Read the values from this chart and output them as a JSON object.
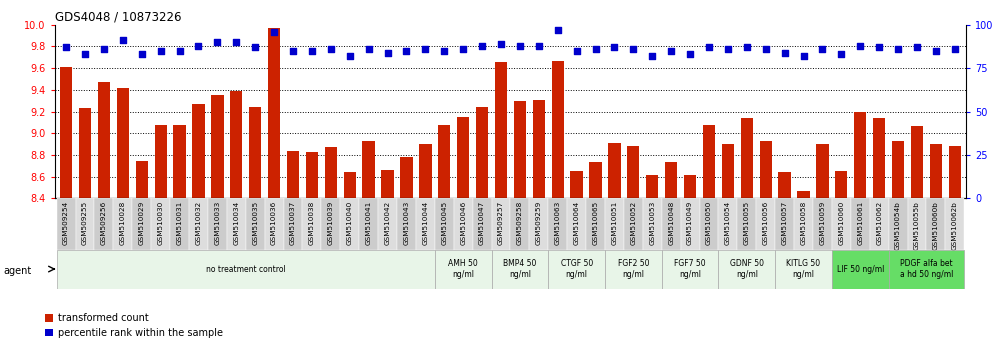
{
  "title": "GDS4048 / 10873226",
  "bar_values": [
    9.61,
    9.23,
    9.47,
    9.42,
    8.74,
    9.08,
    9.08,
    9.27,
    9.35,
    9.39,
    9.24,
    9.97,
    8.84,
    8.83,
    8.87,
    8.64,
    8.93,
    8.66,
    8.78,
    8.9,
    9.08,
    9.15,
    9.24,
    9.66,
    9.3,
    9.31,
    9.67,
    8.65,
    8.73,
    8.91,
    8.88,
    8.61,
    8.73,
    8.61,
    9.08,
    8.9,
    9.14,
    8.93,
    8.64,
    8.47,
    8.9,
    8.65,
    9.2,
    9.14,
    8.93,
    9.07,
    8.9,
    8.88
  ],
  "percentile_values": [
    87,
    83,
    86,
    91,
    83,
    85,
    85,
    88,
    90,
    90,
    87,
    96,
    85,
    85,
    86,
    82,
    86,
    84,
    85,
    86,
    85,
    86,
    88,
    89,
    88,
    88,
    97,
    85,
    86,
    87,
    86,
    82,
    85,
    83,
    87,
    86,
    87,
    86,
    84,
    82,
    86,
    83,
    88,
    87,
    86,
    87,
    85,
    86
  ],
  "x_labels": [
    "GSM509254",
    "GSM509255",
    "GSM509256",
    "GSM510028",
    "GSM510029",
    "GSM510030",
    "GSM510031",
    "GSM510032",
    "GSM510033",
    "GSM510034",
    "GSM510035",
    "GSM510036",
    "GSM510037",
    "GSM510038",
    "GSM510039",
    "GSM510040",
    "GSM510041",
    "GSM510042",
    "GSM510043",
    "GSM510044",
    "GSM510045",
    "GSM510046",
    "GSM510047",
    "GSM509257",
    "GSM509258",
    "GSM509259",
    "GSM510063",
    "GSM510064",
    "GSM510065",
    "GSM510051",
    "GSM510052",
    "GSM510053",
    "GSM510048",
    "GSM510049",
    "GSM510050",
    "GSM510054",
    "GSM510055",
    "GSM510056",
    "GSM510057",
    "GSM510058",
    "GSM510059",
    "GSM510060",
    "GSM510061",
    "GSM510062",
    "GSM510054b",
    "GSM510055b",
    "GSM510060b",
    "GSM510062b"
  ],
  "ylim_left": [
    8.4,
    10.0
  ],
  "ylim_right": [
    0,
    100
  ],
  "yticks_left": [
    8.4,
    8.6,
    8.8,
    9.0,
    9.2,
    9.4,
    9.6,
    9.8,
    10.0
  ],
  "yticks_right": [
    0,
    25,
    50,
    75,
    100
  ],
  "bar_color": "#cc2200",
  "dot_color": "#0000cc",
  "agent_groups": [
    {
      "label": "no treatment control",
      "start": 0,
      "end": 20,
      "color": "#e8f5e8"
    },
    {
      "label": "AMH 50\nng/ml",
      "start": 20,
      "end": 23,
      "color": "#e8f5e8"
    },
    {
      "label": "BMP4 50\nng/ml",
      "start": 23,
      "end": 26,
      "color": "#e8f5e8"
    },
    {
      "label": "CTGF 50\nng/ml",
      "start": 26,
      "end": 29,
      "color": "#e8f5e8"
    },
    {
      "label": "FGF2 50\nng/ml",
      "start": 29,
      "end": 32,
      "color": "#e8f5e8"
    },
    {
      "label": "FGF7 50\nng/ml",
      "start": 32,
      "end": 35,
      "color": "#e8f5e8"
    },
    {
      "label": "GDNF 50\nng/ml",
      "start": 35,
      "end": 38,
      "color": "#e8f5e8"
    },
    {
      "label": "KITLG 50\nng/ml",
      "start": 38,
      "end": 41,
      "color": "#e8f5e8"
    },
    {
      "label": "LIF 50 ng/ml",
      "start": 41,
      "end": 44,
      "color": "#66dd66"
    },
    {
      "label": "PDGF alfa bet\na hd 50 ng/ml",
      "start": 44,
      "end": 48,
      "color": "#66dd66"
    }
  ],
  "grid_dotted_values": [
    8.6,
    8.8,
    9.0,
    9.2,
    9.4,
    9.6,
    9.8
  ],
  "background_color": "#ffffff"
}
